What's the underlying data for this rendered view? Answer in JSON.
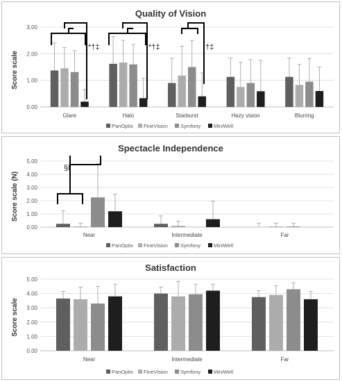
{
  "legend_colors": [
    "#5f5f5f",
    "#acacac",
    "#8c8c8c",
    "#1e1e1e"
  ],
  "chart_data": [
    {
      "type": "bar",
      "title": "Quality of Vision",
      "ylabel": "Score scale",
      "xlabel": "",
      "ylim": [
        0,
        3
      ],
      "yticks": [
        "0.00",
        "1.00",
        "2.00",
        "3.00"
      ],
      "categories": [
        "Glare",
        "Halo",
        "Starburst",
        "Hazy vision",
        "Blurring"
      ],
      "series": [
        {
          "name": "PanOptix",
          "values": [
            1.37,
            1.62,
            0.9,
            1.13,
            1.13
          ],
          "errors": [
            1.03,
            1.03,
            0.93,
            0.71,
            0.71
          ]
        },
        {
          "name": "FineVision",
          "values": [
            1.45,
            1.67,
            1.18,
            0.75,
            0.83
          ],
          "errors": [
            0.78,
            0.83,
            1.1,
            0.93,
            0.77
          ]
        },
        {
          "name": "Symfony",
          "values": [
            1.31,
            1.6,
            1.5,
            0.9,
            0.95
          ],
          "errors": [
            0.8,
            0.75,
            1.0,
            0.88,
            0.87
          ]
        },
        {
          "name": "MiniWell",
          "values": [
            0.2,
            0.33,
            0.4,
            0.59,
            0.6
          ],
          "errors": [
            0.45,
            0.75,
            0.88,
            1.16,
            0.9
          ]
        }
      ],
      "grid": true,
      "legend_position": "bottom",
      "annotations": [
        "*†‡",
        "*†‡",
        "†‡"
      ]
    },
    {
      "type": "bar",
      "title": "Spectacle Independence",
      "ylabel": "Score scale (N)",
      "xlabel": "",
      "ylim": [
        0,
        5
      ],
      "yticks": [
        "0.00",
        "1.00",
        "2.00",
        "3.00",
        "4.00",
        "5.00"
      ],
      "categories": [
        "Near",
        "Intermediate",
        "Far"
      ],
      "series": [
        {
          "name": "PanOptix",
          "values": [
            0.25,
            0.25,
            0.0
          ],
          "errors": [
            1.0,
            0.6,
            0.3
          ]
        },
        {
          "name": "FineVision",
          "values": [
            0.05,
            0.1,
            0.05
          ],
          "errors": [
            0.25,
            0.35,
            0.25
          ]
        },
        {
          "name": "Symfony",
          "values": [
            2.25,
            0.0,
            0.05
          ],
          "errors": [
            2.55,
            0.0,
            0.25
          ]
        },
        {
          "name": "MiniWell",
          "values": [
            1.2,
            0.6,
            0.0
          ],
          "errors": [
            1.3,
            1.35,
            0.0
          ]
        }
      ],
      "grid": true,
      "legend_position": "bottom",
      "annotations": [
        "§‖"
      ]
    },
    {
      "type": "bar",
      "title": "Satisfaction",
      "ylabel": "Score scale",
      "xlabel": "",
      "ylim": [
        0,
        5
      ],
      "yticks": [
        "0.00",
        "1.00",
        "2.00",
        "3.00",
        "4.00",
        "5.00"
      ],
      "categories": [
        "Near",
        "Intermediate",
        "Far"
      ],
      "series": [
        {
          "name": "PanOptix",
          "values": [
            3.65,
            4.0,
            3.75
          ],
          "errors": [
            0.5,
            0.45,
            0.45
          ]
        },
        {
          "name": "FineVision",
          "values": [
            3.6,
            3.8,
            3.9
          ],
          "errors": [
            0.85,
            1.05,
            0.65
          ]
        },
        {
          "name": "Symfony",
          "values": [
            3.3,
            3.95,
            4.3
          ],
          "errors": [
            1.2,
            0.7,
            0.45
          ]
        },
        {
          "name": "MiniWell",
          "values": [
            3.8,
            4.2,
            3.6
          ],
          "errors": [
            0.85,
            0.45,
            0.55
          ]
        }
      ],
      "grid": true,
      "legend_position": "bottom"
    }
  ]
}
